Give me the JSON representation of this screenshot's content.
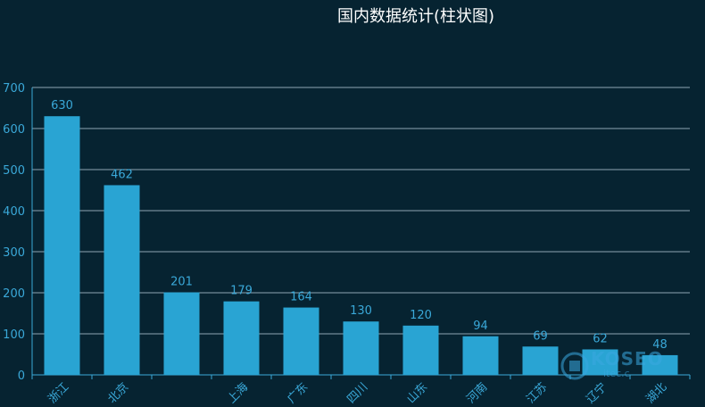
{
  "chart_data": {
    "type": "bar",
    "title": "国内数据统计(柱状图)",
    "categories": [
      "浙江",
      "北京",
      "",
      "上海",
      "广东",
      "四川",
      "山东",
      "河南",
      "江苏",
      "辽宁",
      "湖北"
    ],
    "values": [
      630,
      462,
      201,
      179,
      164,
      130,
      120,
      94,
      69,
      62,
      48
    ],
    "ylim": [
      0,
      700
    ],
    "yticks": [
      0,
      100,
      200,
      300,
      400,
      500,
      600,
      700
    ],
    "grid": true,
    "colors": {
      "bar": "#29a4d3",
      "label": "#3aa8d8",
      "grid": "#8fa6b3",
      "axis": "#3aa8d8",
      "background": "#062331"
    }
  },
  "watermark": {
    "brand": "KOSEO",
    "sub": "itec.c"
  }
}
